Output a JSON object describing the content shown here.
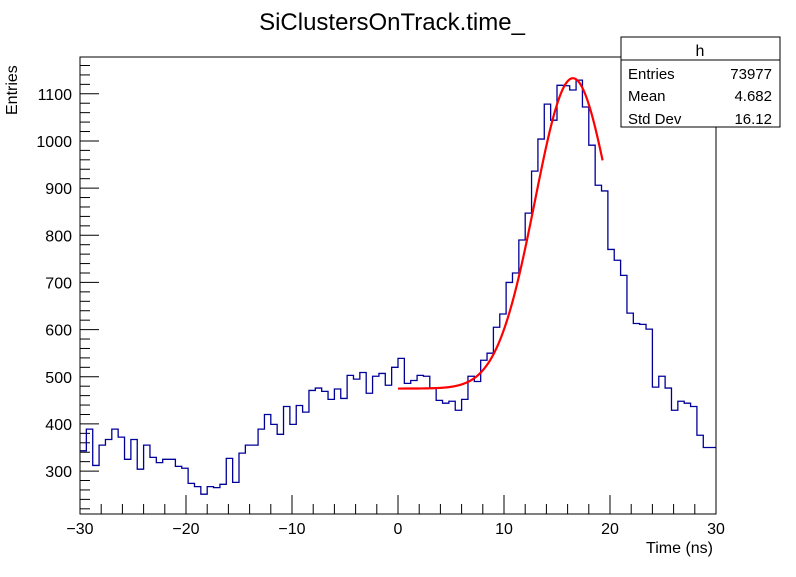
{
  "chart_data": {
    "type": "bar",
    "style": "step-histogram",
    "title": "SiClustersOnTrack.time_",
    "xlabel": "Time (ns)",
    "ylabel": "Entries",
    "xlim": [
      -30,
      30
    ],
    "ylim": [
      209,
      1178
    ],
    "x_ticks": [
      -30,
      -20,
      -10,
      0,
      10,
      20,
      30
    ],
    "x_tick_labels": [
      "−30",
      "−20",
      "−10",
      "0",
      "10",
      "20",
      "30"
    ],
    "y_ticks": [
      300,
      400,
      500,
      600,
      700,
      800,
      900,
      1000,
      1100
    ],
    "y_tick_labels": [
      "300",
      "400",
      "500",
      "600",
      "700",
      "800",
      "900",
      "1000",
      "1100"
    ],
    "grid": false,
    "bin_width": 0.6,
    "values": [
      343,
      389,
      312,
      355,
      367,
      389,
      372,
      325,
      367,
      304,
      355,
      329,
      318,
      325,
      325,
      310,
      306,
      274,
      267,
      251,
      267,
      265,
      272,
      327,
      276,
      338,
      355,
      355,
      389,
      420,
      399,
      378,
      437,
      399,
      439,
      425,
      471,
      476,
      469,
      452,
      474,
      454,
      503,
      495,
      509,
      465,
      501,
      507,
      482,
      520,
      539,
      486,
      492,
      503,
      501,
      476,
      450,
      444,
      448,
      429,
      452,
      501,
      490,
      535,
      550,
      605,
      633,
      700,
      720,
      790,
      847,
      936,
      1004,
      1078,
      1044,
      1118,
      1117,
      1108,
      1129,
      1072,
      991,
      906,
      894,
      770,
      747,
      715,
      635,
      613,
      611,
      601,
      478,
      501,
      476,
      429,
      448,
      444,
      437,
      376,
      350,
      350
    ],
    "fit": {
      "function": "gaussian + constant",
      "constant": 475,
      "amplitude": 658,
      "mean": 16.5,
      "sigma": 3.57,
      "range": [
        0,
        19.3
      ],
      "color": "#ff0000"
    },
    "histogram_color": "#000099",
    "legend_placement": "top-right",
    "stats_box": {
      "title": "h",
      "rows": [
        {
          "label": "Entries",
          "value": "73977"
        },
        {
          "label": "Mean",
          "value": "4.682"
        },
        {
          "label": "Std Dev",
          "value": "16.12"
        }
      ]
    }
  }
}
